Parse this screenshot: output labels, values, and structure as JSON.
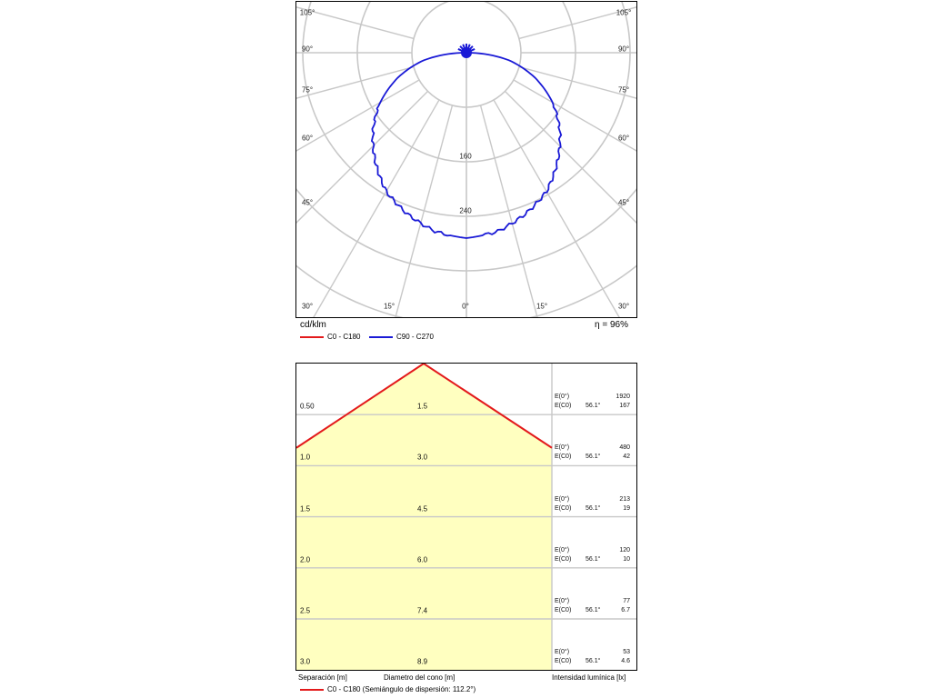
{
  "polar": {
    "chart_data": {
      "type": "polar",
      "unit_label": "cd/klm",
      "efficiency_label": "η = 96%",
      "angle_labels": {
        "left": [
          "105°",
          "90°",
          "75°",
          "60°",
          "45°",
          "30°"
        ],
        "right": [
          "105°",
          "90°",
          "75°",
          "60°",
          "45°",
          "30°"
        ],
        "bottom": [
          "15°",
          "0°",
          "15°"
        ]
      },
      "ring_labels": [
        "160",
        "240"
      ],
      "ring_values": [
        80,
        160,
        240,
        320,
        400
      ],
      "series": [
        {
          "name": "C0 - C180",
          "color": "#e31a1c"
        },
        {
          "name": "C90 - C270",
          "color": "#1a1ad6"
        }
      ],
      "curve": {
        "angles_deg": [
          0,
          10,
          20,
          30,
          40,
          50,
          60,
          70,
          80,
          90
        ],
        "intensity_cd_klm": [
          272,
          266,
          252,
          235,
          208,
          179,
          146,
          107,
          63,
          2
        ]
      }
    }
  },
  "cone": {
    "chart_data": {
      "type": "table",
      "rows": [
        {
          "separation": "0.50",
          "diameter": "1.5",
          "e0": "1920",
          "ec0_angle": "56.1°",
          "ec0": "167"
        },
        {
          "separation": "1.0",
          "diameter": "3.0",
          "e0": "480",
          "ec0_angle": "56.1°",
          "ec0": "42"
        },
        {
          "separation": "1.5",
          "diameter": "4.5",
          "e0": "213",
          "ec0_angle": "56.1°",
          "ec0": "19"
        },
        {
          "separation": "2.0",
          "diameter": "6.0",
          "e0": "120",
          "ec0_angle": "56.1°",
          "ec0": "10"
        },
        {
          "separation": "2.5",
          "diameter": "7.4",
          "e0": "77",
          "ec0_angle": "56.1°",
          "ec0": "6.7"
        },
        {
          "separation": "3.0",
          "diameter": "8.9",
          "e0": "53",
          "ec0_angle": "56.1°",
          "ec0": "4.6"
        }
      ],
      "e0_label": "E(0°)",
      "ec0_label": "E(C0)",
      "col_headers": {
        "separation": "Separación [m]",
        "diameter": "Diametro del cono [m]",
        "intensity": "Intensidad lumínica [lx]"
      },
      "legend": "C0 - C180 (Semiángulo de dispersión: 112.2°)",
      "legend_color": "#e31a1c",
      "fill_color": "#ffffc0"
    }
  }
}
